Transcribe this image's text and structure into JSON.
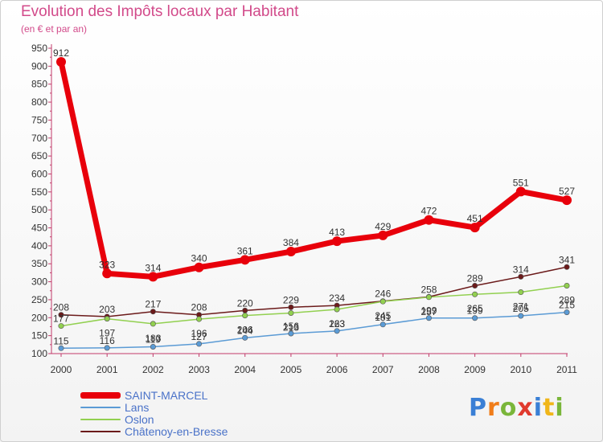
{
  "title": "Evolution des Impôts locaux par Habitant",
  "subtitle": "(en € et par an)",
  "brand": {
    "letters": [
      "P",
      "r",
      "o",
      "x",
      "i",
      "t",
      "i"
    ],
    "colors": [
      "#3a7fd5",
      "#f07d1a",
      "#7ab63a",
      "#e03a2e",
      "#3a7fd5",
      "#f0b61a",
      "#7ab63a"
    ]
  },
  "chart_data": {
    "type": "line",
    "title": "Evolution des Impôts locaux par Habitant",
    "ylabel": "(en € et par an)",
    "xlabel": "",
    "x": [
      "2000",
      "2001",
      "2002",
      "2003",
      "2004",
      "2005",
      "2006",
      "2007",
      "2008",
      "2009",
      "2010",
      "2011"
    ],
    "ylim": [
      100,
      950
    ],
    "yticks": [
      100,
      150,
      200,
      250,
      300,
      350,
      400,
      450,
      500,
      550,
      600,
      650,
      700,
      750,
      800,
      850,
      900,
      950
    ],
    "grid": false,
    "series": [
      {
        "name": "SAINT-MARCEL",
        "color": "#e8000b",
        "values": [
          912,
          323,
          314,
          340,
          361,
          384,
          413,
          429,
          472,
          451,
          551,
          527
        ]
      },
      {
        "name": "Lans",
        "color": "#5b9bd5",
        "values": [
          115,
          116,
          119,
          127,
          144,
          156,
          163,
          181,
          199,
          199,
          205,
          215
        ]
      },
      {
        "name": "Oslon",
        "color": "#92d050",
        "values": [
          177,
          197,
          183,
          196,
          206,
          213,
          223,
          245,
          257,
          265,
          271,
          289
        ]
      },
      {
        "name": "Châtenoy-en-Bresse",
        "color": "#6b1a1a",
        "values": [
          208,
          203,
          217,
          208,
          220,
          229,
          234,
          246,
          258,
          289,
          314,
          341
        ]
      }
    ]
  }
}
